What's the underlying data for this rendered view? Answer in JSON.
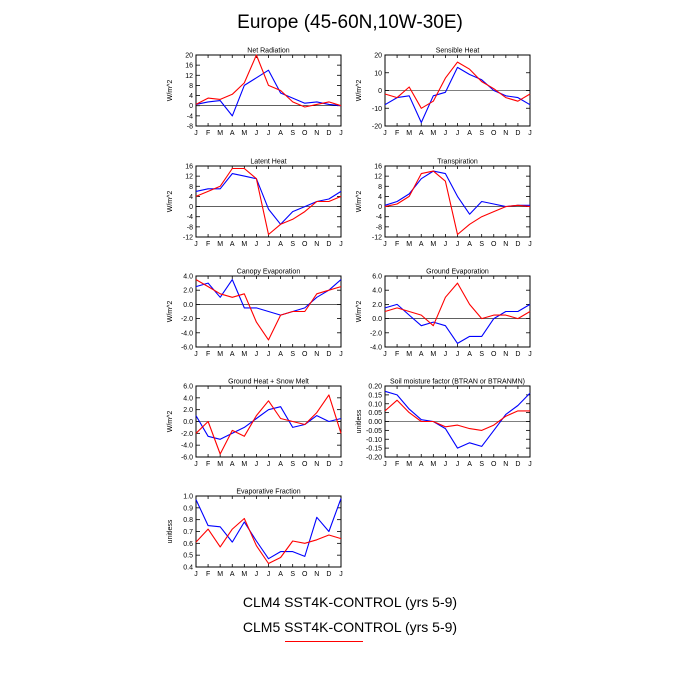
{
  "figure": {
    "title": "Europe (45-60N,10W-30E)",
    "legend": [
      {
        "label": "CLM4 SST4K-CONTROL (yrs 5-9)",
        "color": "#0000ff"
      },
      {
        "label": "CLM5 SST4K-CONTROL (yrs 5-9)",
        "color": "#ff0000"
      }
    ]
  },
  "chart_data": [
    {
      "type": "line",
      "title": "Net Radiation",
      "ylabel": "W/m^2",
      "categories": [
        "J",
        "F",
        "M",
        "A",
        "M",
        "J",
        "J",
        "A",
        "S",
        "O",
        "N",
        "D",
        "J"
      ],
      "ylim": [
        -8,
        20
      ],
      "yticks": [
        -8,
        -4,
        0,
        4,
        8,
        12,
        16,
        20
      ],
      "yticklabels": [
        "-8",
        "-4",
        "0",
        "4",
        "8",
        "12",
        "16",
        "20"
      ],
      "series": [
        {
          "name": "CLM4",
          "color": "#0000ff",
          "values": [
            0.5,
            1.5,
            2,
            -4,
            8,
            11,
            14,
            5,
            3,
            1,
            1.5,
            0.5,
            0
          ]
        },
        {
          "name": "CLM5",
          "color": "#ff0000",
          "values": [
            0.5,
            3,
            2.5,
            4.5,
            9,
            20,
            8,
            6,
            1.5,
            -0.5,
            0.5,
            1.5,
            0
          ]
        }
      ]
    },
    {
      "type": "line",
      "title": "Sensible Heat",
      "ylabel": "W/m^2",
      "categories": [
        "J",
        "F",
        "M",
        "A",
        "M",
        "J",
        "J",
        "A",
        "S",
        "O",
        "N",
        "D",
        "J"
      ],
      "ylim": [
        -20,
        20
      ],
      "yticks": [
        -20,
        -10,
        0,
        10,
        20
      ],
      "yticklabels": [
        "-20",
        "-10",
        "0",
        "10",
        "20"
      ],
      "series": [
        {
          "name": "CLM4",
          "color": "#0000ff",
          "values": [
            -8,
            -4,
            -3,
            -18,
            -3,
            -1,
            13,
            9,
            6,
            0,
            -3,
            -4,
            -8
          ]
        },
        {
          "name": "CLM5",
          "color": "#ff0000",
          "values": [
            -2,
            -4,
            2,
            -10,
            -6,
            7,
            16,
            12,
            5,
            1,
            -4,
            -6,
            -2
          ]
        }
      ]
    },
    {
      "type": "line",
      "title": "Latent Heat",
      "ylabel": "W/m^2",
      "categories": [
        "J",
        "F",
        "M",
        "A",
        "M",
        "J",
        "J",
        "A",
        "S",
        "O",
        "N",
        "D",
        "J"
      ],
      "ylim": [
        -12,
        16
      ],
      "yticks": [
        -12,
        -8,
        -4,
        0,
        4,
        8,
        12,
        16
      ],
      "yticklabels": [
        "-12",
        "-8",
        "-4",
        "0",
        "4",
        "8",
        "12",
        "16"
      ],
      "series": [
        {
          "name": "CLM4",
          "color": "#0000ff",
          "values": [
            6,
            7,
            7,
            13,
            12,
            11,
            -1,
            -7,
            -2,
            0,
            2,
            3,
            6
          ]
        },
        {
          "name": "CLM5",
          "color": "#ff0000",
          "values": [
            4,
            6,
            8,
            15,
            15,
            11,
            -11,
            -7,
            -5,
            -2,
            2,
            2,
            4
          ]
        }
      ]
    },
    {
      "type": "line",
      "title": "Transpiration",
      "ylabel": "W/m^2",
      "categories": [
        "J",
        "F",
        "M",
        "A",
        "M",
        "J",
        "J",
        "A",
        "S",
        "O",
        "N",
        "D",
        "J"
      ],
      "ylim": [
        -12,
        16
      ],
      "yticks": [
        -12,
        -8,
        -4,
        0,
        4,
        8,
        12,
        16
      ],
      "yticklabels": [
        "-12",
        "-8",
        "-4",
        "0",
        "4",
        "8",
        "12",
        "16"
      ],
      "series": [
        {
          "name": "CLM4",
          "color": "#0000ff",
          "values": [
            0.5,
            2,
            5,
            11,
            14,
            13,
            4,
            -3,
            2,
            1,
            0,
            0.5,
            0.5
          ]
        },
        {
          "name": "CLM5",
          "color": "#ff0000",
          "values": [
            0,
            1,
            4,
            13,
            14,
            10,
            -11,
            -7,
            -4,
            -2,
            0,
            0.5,
            0
          ]
        }
      ]
    },
    {
      "type": "line",
      "title": "Canopy Evaporation",
      "ylabel": "W/m^2",
      "categories": [
        "J",
        "F",
        "M",
        "A",
        "M",
        "J",
        "J",
        "A",
        "S",
        "O",
        "N",
        "D",
        "J"
      ],
      "ylim": [
        -6,
        4
      ],
      "yticks": [
        -6,
        -4,
        -2,
        0,
        2,
        4
      ],
      "yticklabels": [
        "-6.0",
        "-4.0",
        "-2.0",
        "0.0",
        "2.0",
        "4.0"
      ],
      "series": [
        {
          "name": "CLM4",
          "color": "#0000ff",
          "values": [
            2.5,
            3,
            1,
            3.5,
            -0.5,
            -0.5,
            -1,
            -1.5,
            -1,
            -0.5,
            1,
            2,
            3.5
          ]
        },
        {
          "name": "CLM5",
          "color": "#ff0000",
          "values": [
            3.5,
            2.5,
            1.5,
            1,
            1.5,
            -2.5,
            -5,
            -1.5,
            -1,
            -1,
            1.5,
            2,
            2.5
          ]
        }
      ]
    },
    {
      "type": "line",
      "title": "Ground Evaporation",
      "ylabel": "W/m^2",
      "categories": [
        "J",
        "F",
        "M",
        "A",
        "M",
        "J",
        "J",
        "A",
        "S",
        "O",
        "N",
        "D",
        "J"
      ],
      "ylim": [
        -4,
        6
      ],
      "yticks": [
        -4,
        -2,
        0,
        2,
        4,
        6
      ],
      "yticklabels": [
        "-4.0",
        "-2.0",
        "0.0",
        "2.0",
        "4.0",
        "6.0"
      ],
      "series": [
        {
          "name": "CLM4",
          "color": "#0000ff",
          "values": [
            1.5,
            2,
            0.5,
            -1,
            -0.5,
            -1,
            -3.5,
            -2.5,
            -2.5,
            0,
            1,
            1,
            2
          ]
        },
        {
          "name": "CLM5",
          "color": "#ff0000",
          "values": [
            1,
            1.5,
            1,
            0.5,
            -1,
            3,
            5,
            2,
            0,
            0.5,
            0.5,
            0,
            1
          ]
        }
      ]
    },
    {
      "type": "line",
      "title": "Ground Heat + Snow Melt",
      "ylabel": "W/m^2",
      "categories": [
        "J",
        "F",
        "M",
        "A",
        "M",
        "J",
        "J",
        "A",
        "S",
        "O",
        "N",
        "D",
        "J"
      ],
      "ylim": [
        -6,
        6
      ],
      "yticks": [
        -6,
        -4,
        -2,
        0,
        2,
        4,
        6
      ],
      "yticklabels": [
        "-6.0",
        "-4.0",
        "-2.0",
        "0.0",
        "2.0",
        "4.0",
        "6.0"
      ],
      "series": [
        {
          "name": "CLM4",
          "color": "#0000ff",
          "values": [
            1,
            -2.5,
            -3,
            -2,
            -1,
            0.5,
            2,
            2.5,
            -1,
            -0.5,
            1,
            0,
            0.5
          ]
        },
        {
          "name": "CLM5",
          "color": "#ff0000",
          "values": [
            -2,
            0,
            -5.5,
            -1.5,
            -2.5,
            1,
            3.5,
            0.5,
            0,
            -0.5,
            1.5,
            4.5,
            -2
          ]
        }
      ]
    },
    {
      "type": "line",
      "title": "Soil moisture factor (BTRAN or BTRANMN)",
      "ylabel": "unitless",
      "categories": [
        "J",
        "F",
        "M",
        "A",
        "M",
        "J",
        "J",
        "A",
        "S",
        "O",
        "N",
        "D",
        "J"
      ],
      "ylim": [
        -0.2,
        0.2
      ],
      "yticks": [
        -0.2,
        -0.15,
        -0.1,
        -0.05,
        0,
        0.05,
        0.1,
        0.15,
        0.2
      ],
      "yticklabels": [
        "-0.20",
        "-0.15",
        "-0.10",
        "-0.05",
        "0.00",
        "0.05",
        "0.10",
        "0.15",
        "0.20"
      ],
      "series": [
        {
          "name": "CLM4",
          "color": "#0000ff",
          "values": [
            0.17,
            0.15,
            0.07,
            0.01,
            0.0,
            -0.04,
            -0.15,
            -0.12,
            -0.14,
            -0.05,
            0.04,
            0.09,
            0.16
          ]
        },
        {
          "name": "CLM5",
          "color": "#ff0000",
          "values": [
            0.06,
            0.12,
            0.05,
            0.0,
            0.0,
            -0.03,
            -0.02,
            -0.04,
            -0.05,
            -0.02,
            0.03,
            0.06,
            0.06
          ]
        }
      ]
    },
    {
      "type": "line",
      "title": "Evaporative Fraction",
      "ylabel": "unitless",
      "categories": [
        "J",
        "F",
        "M",
        "A",
        "M",
        "J",
        "J",
        "A",
        "S",
        "O",
        "N",
        "D",
        "J"
      ],
      "ylim": [
        0.4,
        1.0
      ],
      "yticks": [
        0.4,
        0.5,
        0.6,
        0.7,
        0.8,
        0.9,
        1.0
      ],
      "yticklabels": [
        "0.4",
        "0.5",
        "0.6",
        "0.7",
        "0.8",
        "0.9",
        "1.0"
      ],
      "series": [
        {
          "name": "CLM4",
          "color": "#0000ff",
          "values": [
            0.97,
            0.75,
            0.74,
            0.61,
            0.78,
            0.62,
            0.47,
            0.53,
            0.53,
            0.49,
            0.82,
            0.7,
            0.98
          ]
        },
        {
          "name": "CLM5",
          "color": "#ff0000",
          "values": [
            0.61,
            0.72,
            0.57,
            0.72,
            0.81,
            0.58,
            0.43,
            0.48,
            0.62,
            0.6,
            0.63,
            0.67,
            0.64
          ]
        }
      ]
    }
  ]
}
